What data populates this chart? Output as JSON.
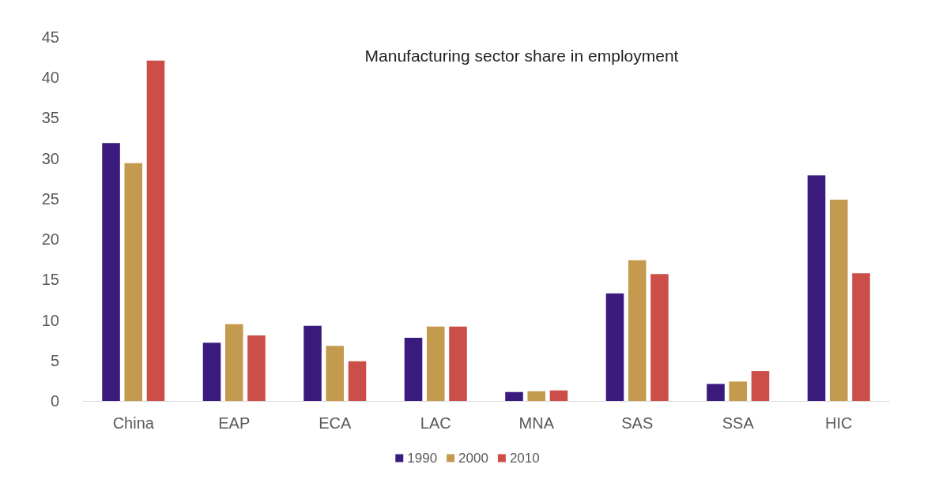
{
  "chart_data": {
    "type": "bar",
    "title": "Manufacturing sector share in employment",
    "categories": [
      "China",
      "EAP",
      "ECA",
      "LAC",
      "MNA",
      "SAS",
      "SSA",
      "HIC"
    ],
    "series": [
      {
        "name": "1990",
        "color": "#3b1a7e",
        "values": [
          31.9,
          7.2,
          9.3,
          7.8,
          1.1,
          13.3,
          2.1,
          27.9
        ]
      },
      {
        "name": "2000",
        "color": "#c49a4e",
        "values": [
          29.4,
          9.5,
          6.8,
          9.2,
          1.2,
          17.4,
          2.4,
          24.9
        ]
      },
      {
        "name": "2010",
        "color": "#cb4f48",
        "values": [
          42.1,
          8.1,
          4.9,
          9.2,
          1.3,
          15.7,
          3.7,
          15.8
        ]
      }
    ],
    "ylim": [
      0,
      45
    ],
    "yticks": [
      0,
      5,
      10,
      15,
      20,
      25,
      30,
      35,
      40,
      45
    ],
    "grid": false,
    "legend": "bottom"
  }
}
